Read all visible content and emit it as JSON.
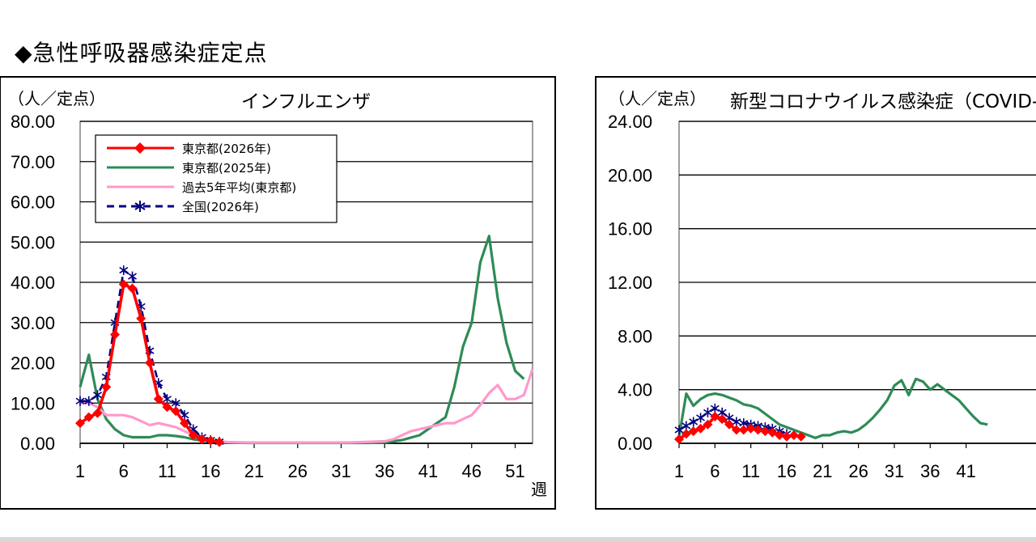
{
  "page": {
    "heading": "◆急性呼吸器感染症定点"
  },
  "chart_data": [
    {
      "type": "line",
      "title": "インフルエンザ",
      "ylabel": "（人／定点）",
      "xlabel": "週",
      "ylim": [
        0,
        80
      ],
      "xlim": [
        1,
        53
      ],
      "y_ticks": [
        "0.00",
        "10.00",
        "20.00",
        "30.00",
        "40.00",
        "50.00",
        "60.00",
        "70.00",
        "80.00"
      ],
      "x_ticks": [
        "1",
        "6",
        "11",
        "16",
        "21",
        "26",
        "31",
        "36",
        "41",
        "46",
        "51"
      ],
      "grid": true,
      "legend_position": "top-left",
      "series": [
        {
          "name": "東京都(2026年)",
          "color": "#ff0000",
          "style": "solid-diamond",
          "x": [
            1,
            2,
            3,
            4,
            5,
            6,
            7,
            8,
            9,
            10,
            11,
            12,
            13,
            14,
            15,
            16,
            17
          ],
          "y": [
            5.0,
            6.5,
            7.5,
            14.0,
            27.0,
            39.5,
            38.5,
            31.0,
            20.0,
            11.0,
            9.0,
            8.0,
            5.0,
            2.0,
            1.0,
            0.7,
            0.3
          ]
        },
        {
          "name": "東京都(2025年)",
          "color": "#2e8b57",
          "style": "solid",
          "x": [
            1,
            2,
            3,
            4,
            5,
            6,
            7,
            8,
            9,
            10,
            11,
            12,
            13,
            14,
            15,
            16,
            17,
            18,
            20,
            22,
            24,
            26,
            28,
            30,
            32,
            34,
            36,
            38,
            40,
            41,
            42,
            43,
            44,
            45,
            46,
            47,
            48,
            49,
            50,
            51,
            52
          ],
          "y": [
            14.0,
            22.0,
            11.0,
            6.0,
            3.5,
            2.0,
            1.5,
            1.5,
            1.5,
            2.0,
            2.0,
            1.8,
            1.5,
            1.0,
            0.7,
            0.5,
            0.3,
            0.2,
            0.1,
            0.1,
            0.1,
            0.1,
            0.1,
            0.1,
            0.1,
            0.1,
            0.2,
            0.8,
            2.0,
            3.5,
            5.0,
            6.5,
            14.0,
            24.0,
            30.0,
            45.0,
            51.5,
            36.0,
            25.0,
            18.0,
            16.0
          ]
        },
        {
          "name": "過去5年平均(東京都)",
          "color": "#ff99cc",
          "style": "solid",
          "x": [
            1,
            2,
            3,
            4,
            5,
            6,
            7,
            8,
            9,
            10,
            11,
            12,
            13,
            14,
            15,
            16,
            17,
            18,
            20,
            24,
            28,
            32,
            36,
            37,
            38,
            39,
            40,
            41,
            42,
            43,
            44,
            45,
            46,
            47,
            48,
            49,
            50,
            51,
            52,
            53
          ],
          "y": [
            10.0,
            10.0,
            9.0,
            7.0,
            7.0,
            7.0,
            6.5,
            5.5,
            4.5,
            5.0,
            4.5,
            4.0,
            3.0,
            2.0,
            1.0,
            0.7,
            0.5,
            0.3,
            0.2,
            0.2,
            0.2,
            0.2,
            0.5,
            1.0,
            2.0,
            3.0,
            3.5,
            4.0,
            4.5,
            5.0,
            5.0,
            6.0,
            7.0,
            9.5,
            12.5,
            14.5,
            11.0,
            11.0,
            12.0,
            18.5
          ]
        },
        {
          "name": "全国(2026年)",
          "color": "#000080",
          "style": "dashed-asterisk",
          "x": [
            1,
            2,
            3,
            4,
            5,
            6,
            7,
            8,
            9,
            10,
            11,
            12,
            13,
            14,
            15,
            16,
            17
          ],
          "y": [
            10.5,
            10.5,
            12.0,
            16.5,
            30.0,
            43.0,
            41.5,
            34.0,
            23.0,
            15.0,
            11.0,
            10.0,
            7.0,
            3.5,
            1.5,
            0.8,
            0.4
          ]
        }
      ]
    },
    {
      "type": "line",
      "title": "新型コロナウイルス感染症（COVID-",
      "ylabel": "（人／定点）",
      "ylim": [
        0,
        24
      ],
      "xlim": [
        1,
        53
      ],
      "y_ticks": [
        "0.00",
        "4.00",
        "8.00",
        "12.00",
        "16.00",
        "20.00",
        "24.00"
      ],
      "x_ticks": [
        "1",
        "6",
        "11",
        "16",
        "21",
        "26",
        "31",
        "36",
        "41"
      ],
      "grid": true,
      "series": [
        {
          "color": "#ff0000",
          "style": "solid-diamond",
          "x": [
            1,
            2,
            3,
            4,
            5,
            6,
            7,
            8,
            9,
            10,
            11,
            12,
            13,
            14,
            15,
            16,
            17,
            18
          ],
          "y": [
            0.3,
            0.7,
            0.9,
            1.1,
            1.4,
            2.0,
            1.8,
            1.4,
            1.0,
            1.0,
            1.1,
            1.0,
            0.9,
            0.8,
            0.6,
            0.5,
            0.6,
            0.5
          ]
        },
        {
          "color": "#2e8b57",
          "style": "solid",
          "x": [
            1,
            2,
            3,
            4,
            5,
            6,
            7,
            8,
            9,
            10,
            11,
            12,
            13,
            14,
            15,
            16,
            17,
            18,
            19,
            20,
            21,
            22,
            23,
            24,
            25,
            26,
            27,
            28,
            29,
            30,
            31,
            32,
            33,
            34,
            35,
            36,
            37,
            38,
            39,
            40,
            41,
            42,
            43,
            44
          ],
          "y": [
            0.5,
            3.7,
            2.8,
            3.3,
            3.6,
            3.7,
            3.6,
            3.4,
            3.2,
            2.9,
            2.8,
            2.6,
            2.2,
            1.8,
            1.4,
            1.2,
            1.0,
            0.8,
            0.6,
            0.4,
            0.6,
            0.6,
            0.8,
            0.9,
            0.8,
            1.0,
            1.4,
            1.9,
            2.5,
            3.2,
            4.3,
            4.7,
            3.6,
            4.8,
            4.6,
            4.0,
            4.4,
            4.0,
            3.6,
            3.2,
            2.6,
            2.0,
            1.5,
            1.4
          ]
        },
        {
          "color": "#000080",
          "style": "dashed-asterisk",
          "x": [
            1,
            2,
            3,
            4,
            5,
            6,
            7,
            8,
            9,
            10,
            11,
            12,
            13,
            14,
            15,
            16
          ],
          "y": [
            1.0,
            1.3,
            1.6,
            1.9,
            2.3,
            2.6,
            2.3,
            1.9,
            1.6,
            1.5,
            1.4,
            1.3,
            1.2,
            1.1,
            0.9,
            0.7
          ]
        }
      ]
    }
  ]
}
